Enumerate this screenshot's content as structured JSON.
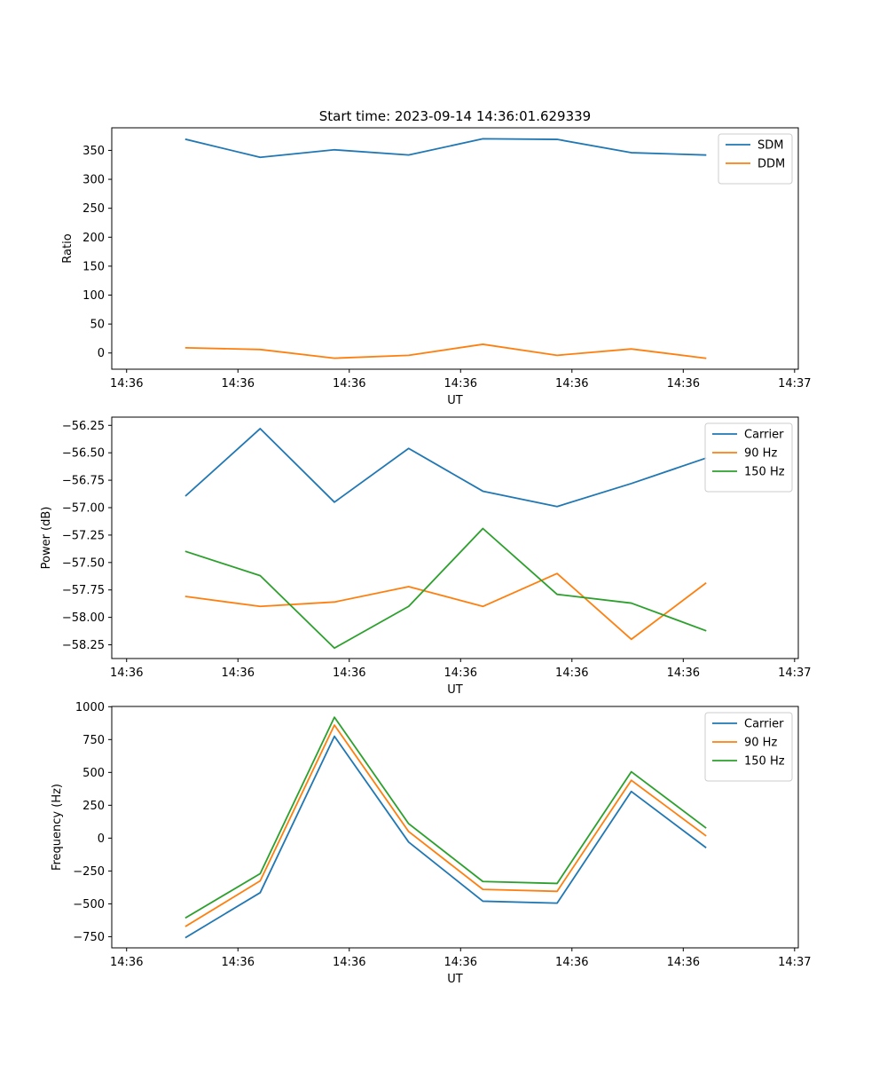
{
  "figure_title": "Start time: 2023-09-14 14:36:01.629339",
  "colors": {
    "blue": "#1f77b4",
    "orange": "#ff7f0e",
    "green": "#2ca02c"
  },
  "chart_data": [
    {
      "type": "line",
      "title": "Start time: 2023-09-14 14:36:01.629339",
      "xlabel": "UT",
      "ylabel": "Ratio",
      "x": [
        1,
        2,
        3,
        4,
        5,
        6,
        7,
        8
      ],
      "xlim": [
        0,
        9.25
      ],
      "x_ticks": [
        0.2,
        1.7,
        3.2,
        4.7,
        6.2,
        7.7,
        9.2
      ],
      "x_tick_labels": [
        "14:36",
        "14:36",
        "14:36",
        "14:36",
        "14:36",
        "14:36",
        "14:37"
      ],
      "ylim": [
        -28,
        389
      ],
      "y_ticks": [
        0,
        50,
        100,
        150,
        200,
        250,
        300,
        350
      ],
      "y_tick_labels": [
        "0",
        "50",
        "100",
        "150",
        "200",
        "250",
        "300",
        "350"
      ],
      "legend_position": "top-right",
      "series": [
        {
          "name": "SDM",
          "color": "#1f77b4",
          "values": [
            369,
            338,
            351,
            342,
            370,
            369,
            346,
            342
          ]
        },
        {
          "name": "DDM",
          "color": "#ff7f0e",
          "values": [
            9,
            6,
            -9,
            -4,
            15,
            -4,
            7,
            -9
          ]
        }
      ]
    },
    {
      "type": "line",
      "title": "",
      "xlabel": "UT",
      "ylabel": "Power (dB)",
      "x": [
        1,
        2,
        3,
        4,
        5,
        6,
        7,
        8
      ],
      "xlim": [
        0,
        9.25
      ],
      "x_ticks": [
        0.2,
        1.7,
        3.2,
        4.7,
        6.2,
        7.7,
        9.2
      ],
      "x_tick_labels": [
        "14:36",
        "14:36",
        "14:36",
        "14:36",
        "14:36",
        "14:36",
        "14:37"
      ],
      "ylim": [
        -58.375,
        -56.175
      ],
      "y_ticks": [
        -58.25,
        -58.0,
        -57.75,
        -57.5,
        -57.25,
        -57.0,
        -56.75,
        -56.5,
        -56.25
      ],
      "y_tick_labels": [
        "−58.25",
        "−58.00",
        "−57.75",
        "−57.50",
        "−57.25",
        "−57.00",
        "−56.75",
        "−56.50",
        "−56.25"
      ],
      "legend_position": "top-right",
      "series": [
        {
          "name": "Carrier",
          "color": "#1f77b4",
          "values": [
            -56.89,
            -56.28,
            -56.95,
            -56.46,
            -56.85,
            -56.99,
            -56.78,
            -56.55
          ]
        },
        {
          "name": "90 Hz",
          "color": "#ff7f0e",
          "values": [
            -57.81,
            -57.9,
            -57.86,
            -57.72,
            -57.9,
            -57.6,
            -58.2,
            -57.69
          ]
        },
        {
          "name": "150 Hz",
          "color": "#2ca02c",
          "values": [
            -57.4,
            -57.62,
            -58.28,
            -57.9,
            -57.19,
            -57.79,
            -57.87,
            -58.12
          ]
        }
      ]
    },
    {
      "type": "line",
      "title": "",
      "xlabel": "UT",
      "ylabel": "Frequency (Hz)",
      "x": [
        1,
        2,
        3,
        4,
        5,
        6,
        7,
        8
      ],
      "xlim": [
        0,
        9.25
      ],
      "x_ticks": [
        0.2,
        1.7,
        3.2,
        4.7,
        6.2,
        7.7,
        9.2
      ],
      "x_tick_labels": [
        "14:36",
        "14:36",
        "14:36",
        "14:36",
        "14:36",
        "14:36",
        "14:37"
      ],
      "ylim": [
        -835,
        1002
      ],
      "y_ticks": [
        -750,
        -500,
        -250,
        0,
        250,
        500,
        750,
        1000
      ],
      "y_tick_labels": [
        "−750",
        "−500",
        "−250",
        "0",
        "250",
        "500",
        "750",
        "1000"
      ],
      "legend_position": "top-right",
      "series": [
        {
          "name": "Carrier",
          "color": "#1f77b4",
          "values": [
            -755,
            -415,
            775,
            -30,
            -480,
            -495,
            355,
            -70
          ]
        },
        {
          "name": "90 Hz",
          "color": "#ff7f0e",
          "values": [
            -670,
            -325,
            860,
            50,
            -390,
            -405,
            440,
            20
          ]
        },
        {
          "name": "150 Hz",
          "color": "#2ca02c",
          "values": [
            -605,
            -270,
            920,
            110,
            -330,
            -345,
            505,
            80
          ]
        }
      ]
    }
  ]
}
